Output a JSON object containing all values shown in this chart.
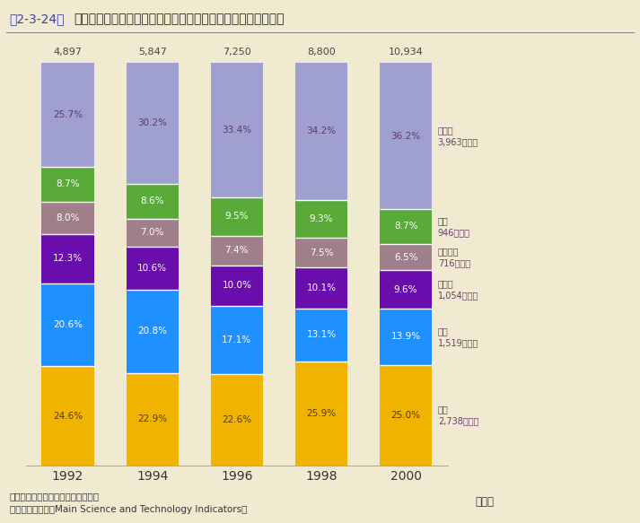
{
  "years": [
    "1992",
    "1994",
    "1996",
    "1998",
    "2000"
  ],
  "totals": [
    "4,897",
    "5,847",
    "7,250",
    "8,800",
    "10,934"
  ],
  "categories": [
    "米国",
    "日本",
    "ドイツ",
    "フランス",
    "英国",
    "その他"
  ],
  "legend_order": [
    "その他",
    "英国",
    "フランス",
    "ドイツ",
    "日本",
    "米国"
  ],
  "legend_labels": {
    "その他": "その他\n3,963億ドル",
    "英国": "英国\n946億ドル",
    "フランス": "フランス\n716億ドル",
    "ドイツ": "ドイツ\n1,054億ドル",
    "日本": "日本\n1,519億ドル",
    "米国": "米国\n2,738億ドル"
  },
  "values": {
    "米国": [
      24.6,
      22.9,
      22.6,
      25.9,
      25.0
    ],
    "日本": [
      20.6,
      20.8,
      17.1,
      13.1,
      13.9
    ],
    "ドイツ": [
      12.3,
      10.6,
      10.0,
      10.1,
      9.6
    ],
    "フランス": [
      8.0,
      7.0,
      7.4,
      7.5,
      6.5
    ],
    "英国": [
      8.7,
      8.6,
      9.5,
      9.3,
      8.7
    ],
    "その他": [
      25.7,
      30.2,
      33.4,
      34.2,
      36.2
    ]
  },
  "colors": {
    "米国": "#f0b400",
    "日本": "#1e90ff",
    "ドイツ": "#6a0dad",
    "フランス": "#9e7f8a",
    "英国": "#5aaa3a",
    "その他": "#a0a0d0"
  },
  "bg_color": "#f0ebd0",
  "title_prefix": "第2-3-24図",
  "title_main": "ＯＥＣＤ諸国におけるハイテク産業輸出额の国別占有率の推移",
  "nen": "（年）",
  "note1": "注）輸出額はドル換算されている。",
  "note2": "資料：ＯＥＣＤ「Main Science and Technology Indicators」"
}
